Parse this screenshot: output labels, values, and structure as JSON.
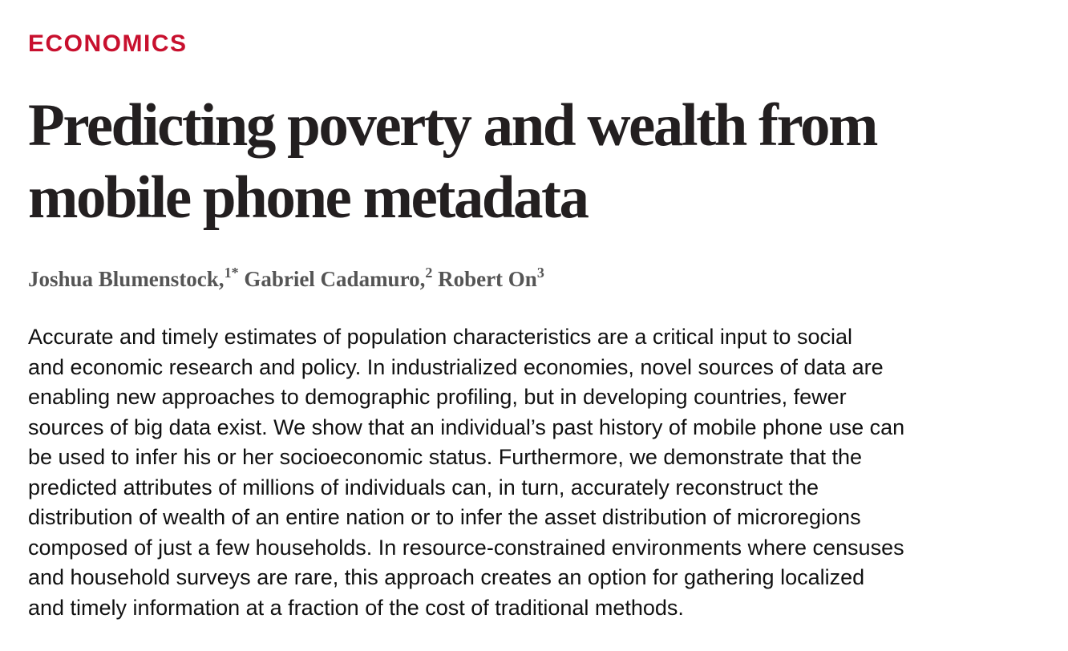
{
  "section": "ECONOMICS",
  "title_lines": [
    "Predicting poverty and wealth from",
    "mobile phone metadata"
  ],
  "authors": [
    {
      "name": "Joshua Blumenstock,",
      "affil": "1*"
    },
    {
      "name": "Gabriel Cadamuro,",
      "affil": "2"
    },
    {
      "name": "Robert On",
      "affil": "3"
    }
  ],
  "abstract_lines": [
    "Accurate and timely estimates of population characteristics are a critical input to social",
    "and economic research and policy. In industrialized economies, novel sources of data are",
    "enabling new approaches to demographic profiling, but in developing countries, fewer",
    "sources of big data exist. We show that an individual’s past history of mobile phone use can",
    "be used to infer his or her socioeconomic status. Furthermore, we demonstrate that the",
    "predicted attributes of millions of individuals can, in turn, accurately reconstruct the",
    "distribution of wealth of an entire nation or to infer the asset distribution of microregions",
    "composed of just a few households. In resource-constrained environments where censuses",
    "and household surveys are rare, this approach creates an option for gathering localized",
    "and timely information at a fraction of the cost of traditional methods."
  ],
  "colors": {
    "section": "#c8102e",
    "title": "#231f20",
    "authors": "#555555",
    "body": "#111111"
  }
}
